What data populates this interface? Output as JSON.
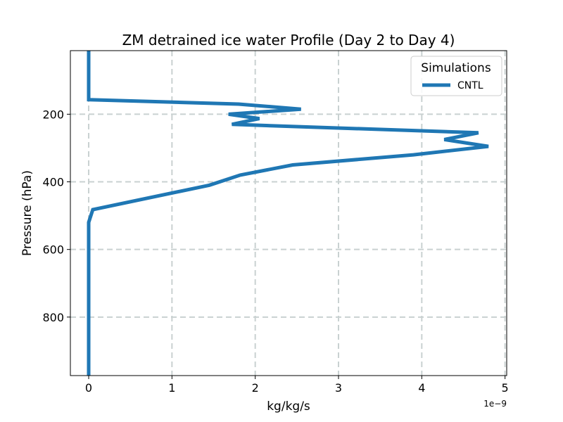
{
  "chart_data": {
    "type": "line",
    "title": "ZM detrained ice water Profile (Day 2 to Day 4)",
    "xlabel": "kg/kg/s",
    "ylabel": "Pressure (hPa)",
    "x_scale_label": "1e−9",
    "xlim": [
      -0.22,
      5.02
    ],
    "ylim": [
      973,
      12
    ],
    "y_inverted": true,
    "grid": true,
    "x_ticks": [
      0,
      1,
      2,
      3,
      4,
      5
    ],
    "x_tick_labels": [
      "0",
      "1",
      "2",
      "3",
      "4",
      "5"
    ],
    "y_ticks": [
      200,
      400,
      600,
      800
    ],
    "y_tick_labels": [
      "200",
      "400",
      "600",
      "800"
    ],
    "legend": {
      "title": "Simulations",
      "position": "top-right"
    },
    "series": [
      {
        "name": "CNTL",
        "color": "#1f77b4",
        "points": [
          {
            "x": 0.0,
            "y": 12
          },
          {
            "x": 0.0,
            "y": 100
          },
          {
            "x": 0.0,
            "y": 157
          },
          {
            "x": 1.8,
            "y": 170
          },
          {
            "x": 2.55,
            "y": 185
          },
          {
            "x": 1.68,
            "y": 200
          },
          {
            "x": 2.05,
            "y": 213
          },
          {
            "x": 1.72,
            "y": 230
          },
          {
            "x": 4.68,
            "y": 255
          },
          {
            "x": 4.27,
            "y": 275
          },
          {
            "x": 4.8,
            "y": 295
          },
          {
            "x": 3.9,
            "y": 320
          },
          {
            "x": 2.45,
            "y": 350
          },
          {
            "x": 1.82,
            "y": 380
          },
          {
            "x": 1.45,
            "y": 410
          },
          {
            "x": 0.05,
            "y": 482
          },
          {
            "x": 0.0,
            "y": 520
          },
          {
            "x": 0.0,
            "y": 600
          },
          {
            "x": 0.0,
            "y": 800
          },
          {
            "x": 0.0,
            "y": 973
          }
        ]
      }
    ]
  }
}
